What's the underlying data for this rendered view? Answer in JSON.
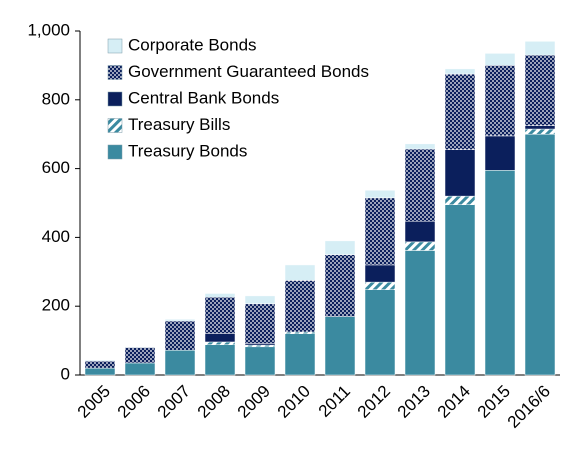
{
  "chart_data": {
    "type": "stacked-bar",
    "categories": [
      "2005",
      "2006",
      "2007",
      "2008",
      "2009",
      "2010",
      "2011",
      "2012",
      "2013",
      "2014",
      "2015",
      "2016/6"
    ],
    "series": [
      {
        "name": "Treasury Bonds",
        "color": "#3b8aa0",
        "values": [
          20,
          35,
          72,
          88,
          82,
          120,
          170,
          248,
          362,
          495,
          595,
          700
        ]
      },
      {
        "name": "Treasury Bills",
        "color": "#3b8aa0",
        "pattern": "diagonal",
        "values": [
          0,
          0,
          0,
          8,
          5,
          5,
          0,
          22,
          25,
          25,
          0,
          15
        ]
      },
      {
        "name": "Central Bank Bonds",
        "color": "#0b1f5c",
        "values": [
          0,
          0,
          0,
          25,
          5,
          0,
          0,
          50,
          60,
          135,
          100,
          10
        ]
      },
      {
        "name": "Government Guaranteed Bonds",
        "color": "#0b1f5c",
        "pattern": "dots",
        "values": [
          20,
          45,
          85,
          105,
          115,
          150,
          180,
          195,
          210,
          220,
          205,
          205
        ]
      },
      {
        "name": "Corporate Bonds",
        "color": "#d6eef5",
        "values": [
          3,
          2,
          5,
          11,
          23,
          45,
          40,
          22,
          15,
          15,
          35,
          40
        ]
      }
    ],
    "ylim": [
      0,
      1000
    ],
    "yticks": [
      0,
      200,
      400,
      600,
      800,
      {
        "value": 1000,
        "label": "1,000"
      }
    ],
    "legend": "upper left"
  }
}
